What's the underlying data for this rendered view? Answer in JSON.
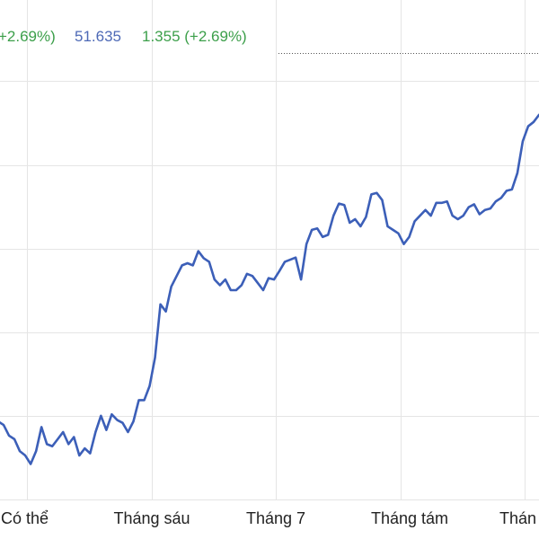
{
  "header": {
    "change_left": "+2.69%)",
    "price": "51.635",
    "change_right": "1.355 (+2.69%)"
  },
  "colors": {
    "line": "#3c5fb8",
    "grid": "#e5e5e5",
    "up": "#3c9f4a",
    "price": "#4d69b6",
    "reference_line": "#555555"
  },
  "chart_data": {
    "type": "line",
    "title": "",
    "xlabel": "",
    "ylabel": "",
    "x_tick_labels": [
      "Có thể",
      "Tháng sáu",
      "Tháng 7",
      "Tháng tám",
      "Thán"
    ],
    "grid": true,
    "ylim": [
      -1.4,
      4.5
    ],
    "series": [
      {
        "values": [
          -0.3,
          -0.35,
          -0.5,
          -0.55,
          -0.72,
          -0.78,
          -0.9,
          -0.72,
          -0.38,
          -0.62,
          -0.65,
          -0.55,
          -0.45,
          -0.62,
          -0.52,
          -0.78,
          -0.68,
          -0.75,
          -0.45,
          -0.22,
          -0.42,
          -0.2,
          -0.28,
          -0.32,
          -0.45,
          -0.3,
          0.0,
          0.0,
          0.2,
          0.6,
          1.35,
          1.25,
          1.6,
          1.75,
          1.9,
          1.93,
          1.9,
          2.1,
          2.0,
          1.95,
          1.7,
          1.62,
          1.7,
          1.55,
          1.55,
          1.62,
          1.78,
          1.75,
          1.65,
          1.55,
          1.72,
          1.7,
          1.82,
          1.95,
          1.98,
          2.01,
          1.7,
          2.2,
          2.4,
          2.42,
          2.3,
          2.33,
          2.6,
          2.77,
          2.75,
          2.5,
          2.55,
          2.45,
          2.58,
          2.9,
          2.92,
          2.82,
          2.45,
          2.4,
          2.35,
          2.2,
          2.3,
          2.52,
          2.6,
          2.68,
          2.6,
          2.78,
          2.78,
          2.8,
          2.6,
          2.55,
          2.6,
          2.72,
          2.76,
          2.62,
          2.68,
          2.7,
          2.8,
          2.85,
          2.95,
          2.97,
          3.2,
          3.65,
          3.86,
          3.92,
          4.02
        ]
      }
    ]
  }
}
